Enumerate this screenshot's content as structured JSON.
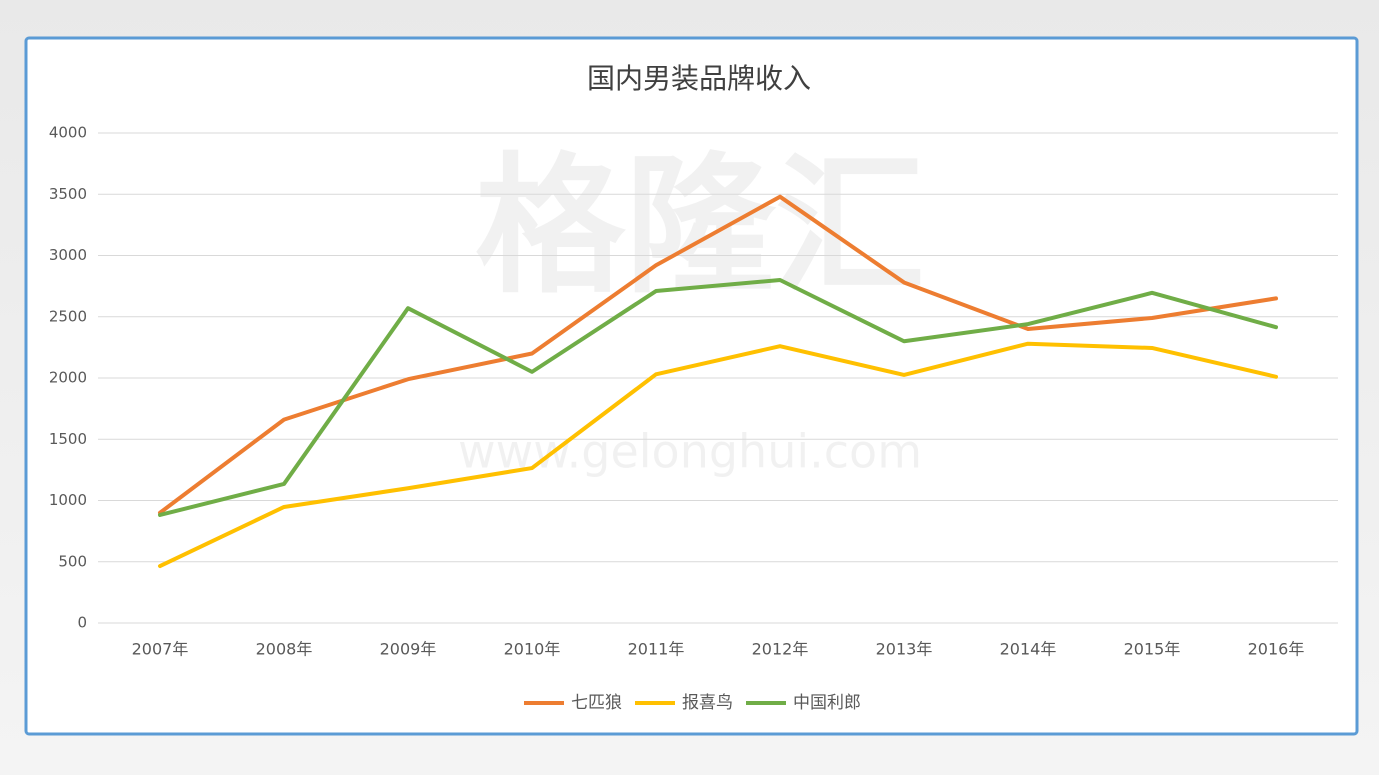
{
  "chart_data": {
    "type": "line",
    "title": "国内男装品牌收入",
    "categories": [
      "2007年",
      "2008年",
      "2009年",
      "2010年",
      "2011年",
      "2012年",
      "2013年",
      "2014年",
      "2015年",
      "2016年"
    ],
    "series": [
      {
        "name": "七匹狼",
        "color": "#ed7d31",
        "values": [
          900,
          1660,
          1990,
          2200,
          2920,
          3480,
          2780,
          2400,
          2490,
          2650
        ]
      },
      {
        "name": "报喜鸟",
        "color": "#ffc000",
        "values": [
          465,
          947,
          1100,
          1265,
          2030,
          2260,
          2025,
          2280,
          2245,
          2010
        ]
      },
      {
        "name": "中国利郎",
        "color": "#70ad47",
        "values": [
          882,
          1135,
          2570,
          2050,
          2710,
          2800,
          2300,
          2440,
          2695,
          2415
        ]
      }
    ],
    "ylim": [
      0,
      4000
    ],
    "yticks": [
      0,
      500,
      1000,
      1500,
      2000,
      2500,
      3000,
      3500,
      4000
    ],
    "grid": true,
    "legend": "bottom",
    "watermark": {
      "logo": "格隆汇",
      "url": "www.gelonghui.com"
    }
  }
}
